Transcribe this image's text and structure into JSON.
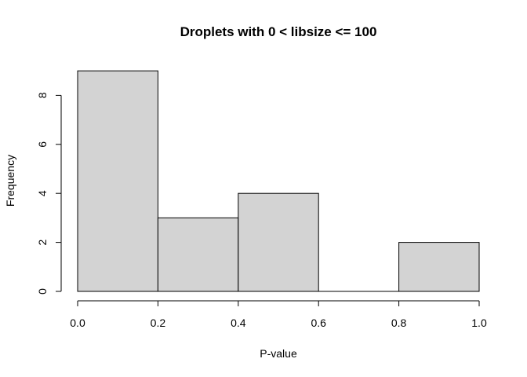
{
  "chart_data": {
    "type": "histogram",
    "title": "Droplets with 0 < libsize <= 100",
    "xlabel": "P-value",
    "ylabel": "Frequency",
    "bins": [
      {
        "start": 0.0,
        "end": 0.2,
        "count": 9
      },
      {
        "start": 0.2,
        "end": 0.4,
        "count": 3
      },
      {
        "start": 0.4,
        "end": 0.6,
        "count": 4
      },
      {
        "start": 0.6,
        "end": 0.8,
        "count": 0
      },
      {
        "start": 0.8,
        "end": 1.0,
        "count": 2
      }
    ],
    "xlim": [
      0,
      1
    ],
    "ylim": [
      0,
      9
    ],
    "x_ticks": [
      "0.0",
      "0.2",
      "0.4",
      "0.6",
      "0.8",
      "1.0"
    ],
    "y_ticks": [
      "0",
      "2",
      "4",
      "6",
      "8"
    ],
    "grid": false,
    "bar_fill": "#d3d3d3",
    "bar_stroke": "#000000"
  }
}
